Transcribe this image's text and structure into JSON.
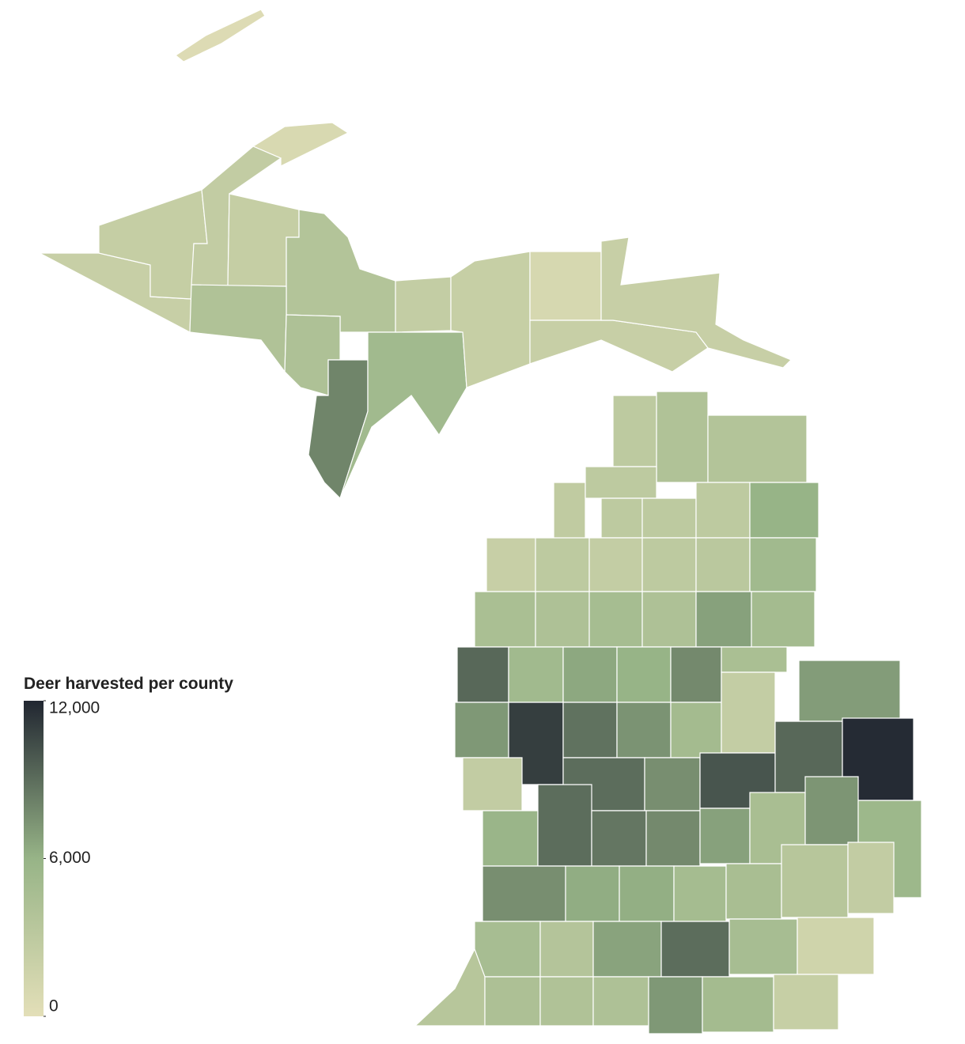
{
  "chart_data": {
    "type": "choropleth",
    "legend_title": "Deer harvested per county",
    "colorlim": [
      0,
      12000
    ],
    "colors": [
      "#e3dfb8",
      "#97b487",
      "#212631"
    ],
    "ticks": [
      {
        "value": 12000,
        "label": "12,000"
      },
      {
        "value": 6000,
        "label": "6,000"
      },
      {
        "value": 0,
        "label": "0"
      }
    ],
    "values": [
      500,
      900,
      2200,
      2400,
      2600,
      2400,
      3800,
      4000,
      4200,
      8000,
      5200,
      2500,
      2300,
      1000,
      2200,
      2200,
      3000,
      4000,
      3800,
      2800,
      3000,
      3000,
      3000,
      3000,
      6000,
      2200,
      3000,
      2500,
      3000,
      3200,
      5200,
      4500,
      4200,
      4800,
      4200,
      6800,
      5000,
      9200,
      5200,
      6500,
      6000,
      7800,
      4500,
      7200,
      11000,
      8800,
      7400,
      5000,
      2500,
      7000,
      2600,
      9000,
      7600,
      10000,
      9200,
      11800,
      5800,
      9000,
      8600,
      7800,
      6800,
      4600,
      7300,
      5500,
      7600,
      6300,
      6200,
      4900,
      4600,
      3500,
      2600,
      4700,
      3700,
      6700,
      9000,
      4700,
      1600,
      3500,
      4300,
      4000,
      4200,
      7200,
      5000,
      2300
    ]
  }
}
